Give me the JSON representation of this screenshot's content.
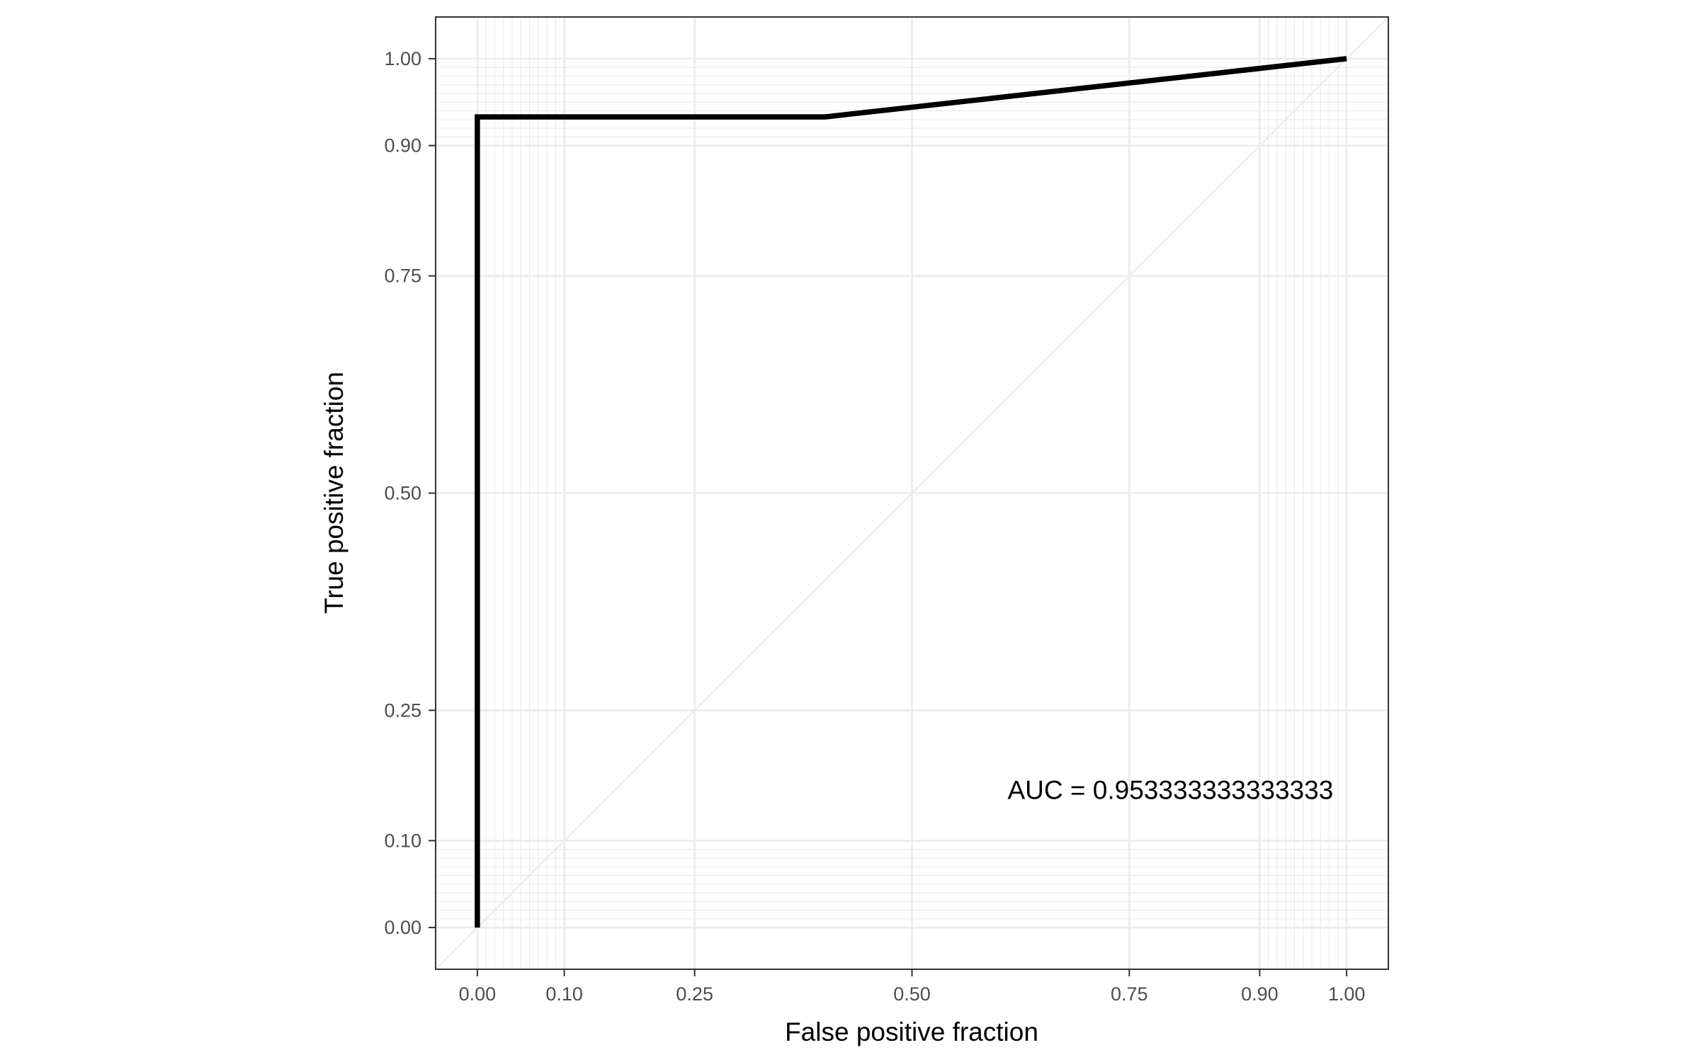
{
  "chart_data": {
    "type": "line",
    "title": "",
    "xlabel": "False positive fraction",
    "ylabel": "True positive fraction",
    "xlim": [
      -0.048,
      1.048
    ],
    "ylim": [
      -0.048,
      1.048
    ],
    "x_ticks": [
      0.0,
      0.1,
      0.25,
      0.5,
      0.75,
      0.9,
      1.0
    ],
    "x_tick_labels": [
      "0.00",
      "0.10",
      "0.25",
      "0.50",
      "0.75",
      "0.90",
      "1.00"
    ],
    "y_ticks": [
      0.0,
      0.1,
      0.25,
      0.5,
      0.75,
      0.9,
      1.0
    ],
    "y_tick_labels": [
      "0.00",
      "0.10",
      "0.25",
      "0.50",
      "0.75",
      "0.90",
      "1.00"
    ],
    "minor_grid": [
      0.01,
      0.02,
      0.03,
      0.04,
      0.05,
      0.06,
      0.07,
      0.08,
      0.09,
      0.91,
      0.92,
      0.93,
      0.94,
      0.95,
      0.96,
      0.97,
      0.98,
      0.99
    ],
    "grid": true,
    "reference_line": {
      "x": [
        -0.048,
        1.048
      ],
      "y": [
        -0.048,
        1.048
      ]
    },
    "series": [
      {
        "x": [
          0.0,
          0.0,
          0.4,
          1.0
        ],
        "y": [
          0.0,
          0.933,
          0.933,
          1.0
        ],
        "color": "#000000"
      }
    ],
    "annotation": {
      "text": "AUC = 0.953333333333333",
      "x": 0.61,
      "y": 0.148
    },
    "colors": {
      "grid": "#ebebeb",
      "panel_border": "#333333",
      "tick_label": "#4d4d4d",
      "curve": "#000000",
      "reference_line": "#ebebeb"
    }
  }
}
